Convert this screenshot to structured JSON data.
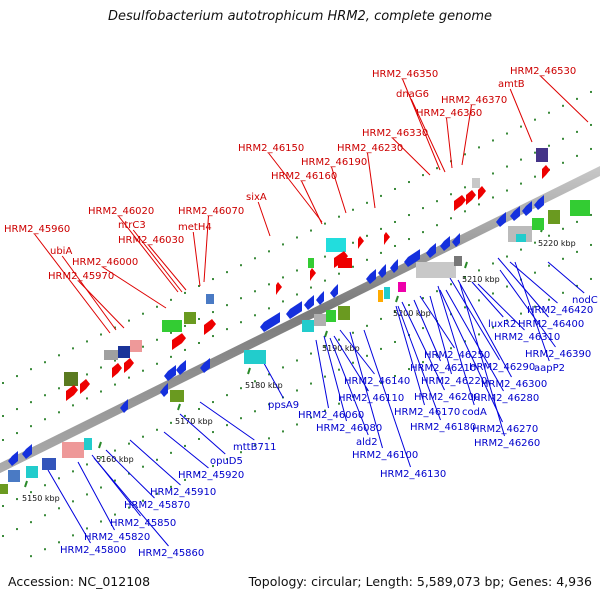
{
  "title": "Desulfobacterium autotrophicum HRM2, complete genome",
  "footer": {
    "accession": "Accession: NC_012108",
    "info": "Topology: circular; Length: 5,589,073 bp; Genes: 4,936"
  },
  "colors": {
    "forward": "#ee0000",
    "reverse": "#1530dd",
    "backbone": "#8a8a8a",
    "tick": "#2a8a2a"
  },
  "scale_labels": [
    "5150 kbp",
    "5160 kbp",
    "5170 kbp",
    "5180 kbp",
    "5190 kbp",
    "5200 kbp",
    "5210 kbp",
    "5220 kbp"
  ],
  "forward_labels": [
    "HRM2_46530",
    "HRM2_46350",
    "dnaG6",
    "HRM2_46370",
    "amtB",
    "HRM2_46360",
    "HRM2_46330",
    "HRM2_46150",
    "HRM2_46230",
    "HRM2_46190",
    "HRM2_46160",
    "sixA",
    "HRM2_46020",
    "HRM2_46070",
    "ntrC3",
    "metH4",
    "HRM2_45960",
    "HRM2_46030",
    "ubiA",
    "HRM2_46000",
    "HRM2_45970"
  ],
  "reverse_labels": [
    "nodC",
    "HRM2_46420",
    "HRM2_46400",
    "HRM2_46310",
    "luxR2",
    "HRM2_46390",
    "aapP2",
    "HRM2_46290",
    "HRM2_46250",
    "HRM2_46300",
    "HRM2_46210",
    "HRM2_46220",
    "HRM2_46280",
    "HRM2_46140",
    "HRM2_46200",
    "HRM2_46110",
    "HRM2_46170",
    "codA",
    "HRM2_46060",
    "HRM2_46270",
    "HRM2_46180",
    "HRM2_46080",
    "HRM2_46260",
    "ppsA9",
    "ald2",
    "mttB711",
    "HRM2_46100",
    "opuD5",
    "HRM2_45920",
    "HRM2_46130",
    "HRM2_45910",
    "HRM2_45870",
    "HRM2_45850",
    "HRM2_45820",
    "HRM2_45860",
    "HRM2_45800"
  ]
}
